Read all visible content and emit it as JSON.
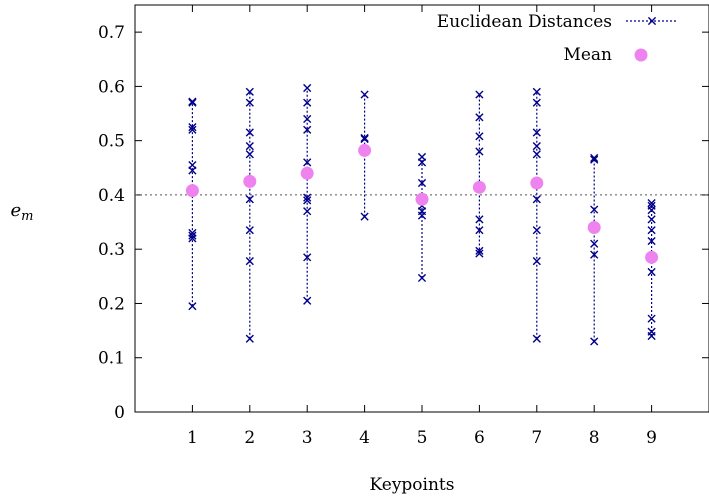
{
  "chart_data": {
    "type": "scatter",
    "xlabel": "Keypoints",
    "ylabel": "e_m",
    "ylabel_base": "e",
    "ylabel_sub": "m",
    "xlim": [
      0,
      10
    ],
    "ylim": [
      0,
      0.75
    ],
    "xticks": [
      1,
      2,
      3,
      4,
      5,
      6,
      7,
      8,
      9
    ],
    "yticks": [
      0,
      0.1,
      0.2,
      0.3,
      0.4,
      0.5,
      0.6,
      0.7
    ],
    "ytick_labels": [
      "0",
      "0.1",
      "0.2",
      "0.3",
      "0.4",
      "0.5",
      "0.6",
      "0.7"
    ],
    "reference_line": 0.4,
    "legend_position": "top-right",
    "colors": {
      "distances": "#00008b",
      "mean": "#ee82ee",
      "reference": "#555555"
    },
    "series": [
      {
        "name": "Euclidean Distances",
        "marker": "x",
        "points": [
          {
            "x": 1,
            "values": [
              0.195,
              0.32,
              0.325,
              0.33,
              0.445,
              0.455,
              0.52,
              0.525,
              0.57,
              0.572
            ]
          },
          {
            "x": 2,
            "values": [
              0.135,
              0.278,
              0.335,
              0.392,
              0.475,
              0.49,
              0.515,
              0.57,
              0.59
            ]
          },
          {
            "x": 3,
            "values": [
              0.205,
              0.285,
              0.37,
              0.39,
              0.395,
              0.46,
              0.52,
              0.54,
              0.57,
              0.597
            ]
          },
          {
            "x": 4,
            "values": [
              0.36,
              0.505,
              0.503,
              0.585
            ]
          },
          {
            "x": 5,
            "values": [
              0.247,
              0.362,
              0.37,
              0.38,
              0.422,
              0.46,
              0.47
            ]
          },
          {
            "x": 6,
            "values": [
              0.292,
              0.297,
              0.335,
              0.355,
              0.48,
              0.508,
              0.543,
              0.585
            ]
          },
          {
            "x": 7,
            "values": [
              0.135,
              0.278,
              0.335,
              0.392,
              0.475,
              0.49,
              0.515,
              0.57,
              0.59
            ]
          },
          {
            "x": 8,
            "values": [
              0.13,
              0.29,
              0.31,
              0.373,
              0.465,
              0.468
            ]
          },
          {
            "x": 9,
            "values": [
              0.14,
              0.148,
              0.172,
              0.258,
              0.315,
              0.335,
              0.355,
              0.372,
              0.38,
              0.385
            ]
          }
        ]
      },
      {
        "name": "Mean",
        "marker": "circle",
        "x": [
          1,
          2,
          3,
          4,
          5,
          6,
          7,
          8,
          9
        ],
        "values": [
          0.408,
          0.425,
          0.44,
          0.482,
          0.392,
          0.414,
          0.422,
          0.34,
          0.285
        ]
      }
    ]
  }
}
